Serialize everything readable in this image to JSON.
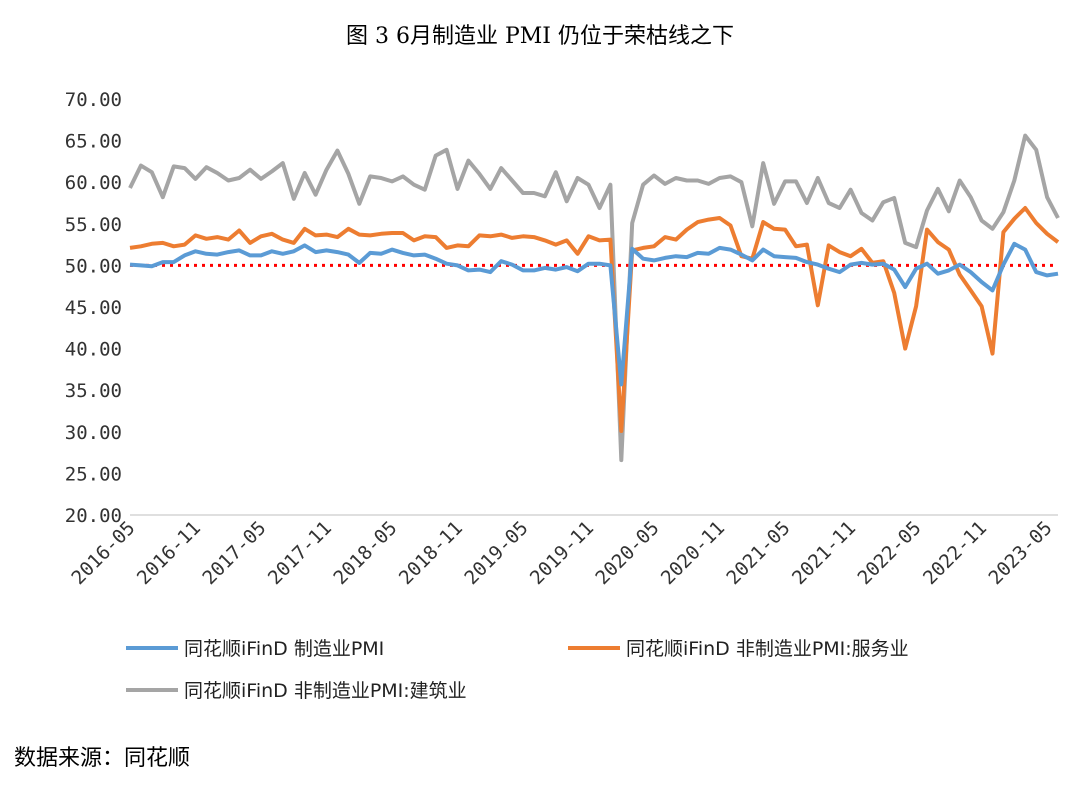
{
  "chart_data": {
    "type": "line",
    "title": "图 3 6月制造业 PMI 仍位于荣枯线之下",
    "source": "数据来源：同花顺",
    "xlabel": "",
    "ylabel": "",
    "ylim": [
      20,
      70
    ],
    "yticks": [
      "20.00",
      "25.00",
      "30.00",
      "35.00",
      "40.00",
      "45.00",
      "50.00",
      "55.00",
      "60.00",
      "65.00",
      "70.00"
    ],
    "xticks": [
      "2016-05",
      "2016-11",
      "2017-05",
      "2017-11",
      "2018-05",
      "2018-11",
      "2019-05",
      "2019-11",
      "2020-05",
      "2020-11",
      "2021-05",
      "2021-11",
      "2022-05",
      "2022-11",
      "2023-05"
    ],
    "x_start": "2016-05",
    "x_end": "2023-06",
    "grid": false,
    "legend_position": "bottom",
    "reference_line": {
      "value": 50,
      "color": "#ff0000",
      "style": "dotted"
    },
    "series": [
      {
        "name": "同花顺iFinD 制造业PMI",
        "color": "#5b9bd5",
        "values": [
          50.1,
          50.0,
          49.9,
          50.4,
          50.4,
          51.2,
          51.7,
          51.4,
          51.3,
          51.6,
          51.8,
          51.2,
          51.2,
          51.7,
          51.4,
          51.7,
          52.4,
          51.6,
          51.8,
          51.6,
          51.3,
          50.3,
          51.5,
          51.4,
          51.9,
          51.5,
          51.2,
          51.3,
          50.8,
          50.2,
          50.0,
          49.4,
          49.5,
          49.2,
          50.5,
          50.1,
          49.4,
          49.4,
          49.7,
          49.5,
          49.8,
          49.3,
          50.2,
          50.2,
          50.0,
          35.7,
          52.0,
          50.8,
          50.6,
          50.9,
          51.1,
          51.0,
          51.5,
          51.4,
          52.1,
          51.9,
          51.3,
          50.6,
          51.9,
          51.1,
          51.0,
          50.9,
          50.4,
          50.1,
          49.6,
          49.2,
          50.1,
          50.3,
          50.1,
          50.2,
          49.5,
          47.4,
          49.6,
          50.2,
          49.0,
          49.4,
          50.1,
          49.2,
          48.0,
          47.0,
          50.1,
          52.6,
          51.9,
          49.2,
          48.8,
          49.0
        ]
      },
      {
        "name": "同花顺iFinD 非制造业PMI:服务业",
        "color": "#ed7d31",
        "values": [
          52.1,
          52.3,
          52.6,
          52.7,
          52.3,
          52.5,
          53.6,
          53.2,
          53.4,
          53.1,
          54.2,
          52.7,
          53.5,
          53.8,
          53.1,
          52.7,
          54.4,
          53.6,
          53.7,
          53.4,
          54.4,
          53.7,
          53.6,
          53.8,
          53.9,
          53.9,
          53.0,
          53.5,
          53.4,
          52.1,
          52.4,
          52.3,
          53.6,
          53.5,
          53.7,
          53.3,
          53.5,
          53.4,
          53.0,
          52.5,
          53.0,
          51.4,
          53.5,
          53.0,
          53.1,
          30.1,
          51.8,
          52.1,
          52.3,
          53.4,
          53.1,
          54.3,
          55.2,
          55.5,
          55.7,
          54.8,
          51.1,
          50.8,
          55.2,
          54.4,
          54.3,
          52.3,
          52.5,
          45.2,
          52.4,
          51.6,
          51.1,
          52.0,
          50.3,
          50.5,
          46.7,
          40.0,
          45.1,
          54.3,
          52.8,
          51.9,
          48.9,
          47.0,
          45.1,
          39.4,
          54.0,
          55.6,
          56.9,
          55.1,
          53.8,
          52.8
        ]
      },
      {
        "name": "同花顺iFinD 非制造业PMI:建筑业",
        "color": "#a5a5a5",
        "values": [
          59.3,
          62.0,
          61.2,
          58.2,
          61.9,
          61.7,
          60.4,
          61.8,
          61.1,
          60.2,
          60.5,
          61.5,
          60.4,
          61.3,
          62.3,
          58.0,
          61.1,
          58.5,
          61.5,
          63.8,
          61.0,
          57.4,
          60.7,
          60.5,
          60.1,
          60.7,
          59.7,
          59.1,
          63.2,
          63.9,
          59.2,
          62.6,
          61.0,
          59.2,
          61.7,
          60.2,
          58.7,
          58.7,
          58.3,
          61.2,
          57.7,
          60.5,
          59.7,
          56.9,
          59.7,
          26.6,
          55.1,
          59.7,
          60.8,
          59.8,
          60.5,
          60.2,
          60.2,
          59.8,
          60.5,
          60.7,
          60.0,
          54.7,
          62.3,
          57.4,
          60.1,
          60.1,
          57.5,
          60.5,
          57.5,
          56.9,
          59.1,
          56.3,
          55.4,
          57.6,
          58.1,
          52.7,
          52.2,
          56.6,
          59.2,
          56.5,
          60.2,
          58.2,
          55.4,
          54.4,
          56.4,
          60.2,
          65.6,
          63.9,
          58.2,
          55.7
        ]
      }
    ]
  }
}
